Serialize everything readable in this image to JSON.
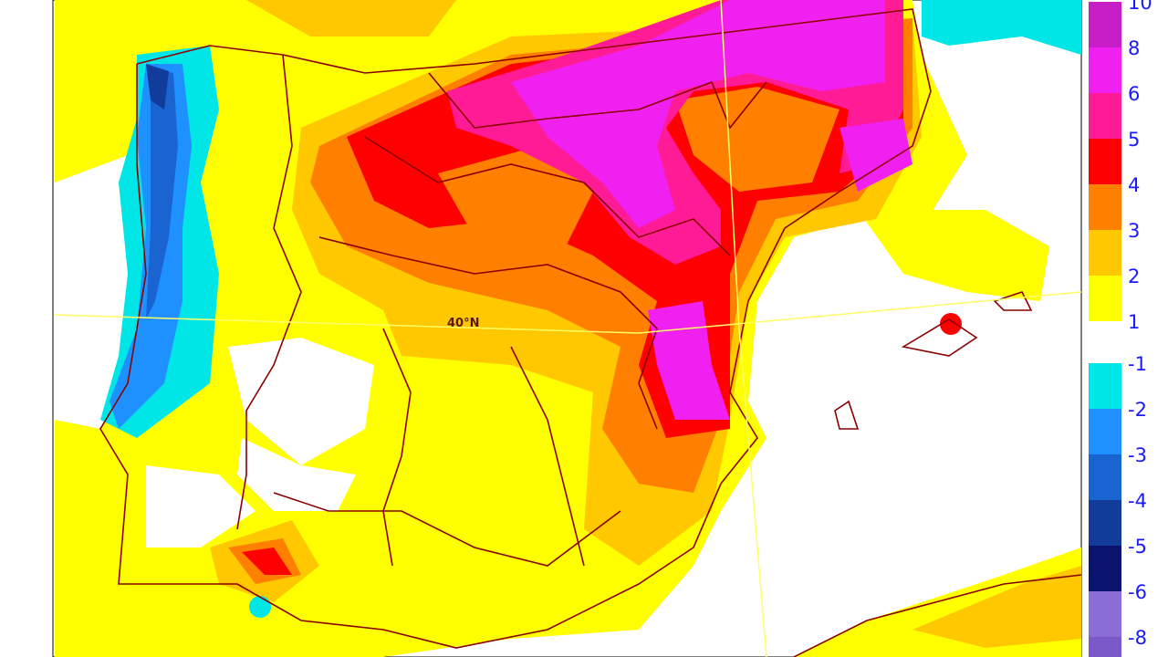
{
  "map_label": "40°N",
  "colorbar": {
    "positive": {
      "labels": [
        10,
        8,
        6,
        5,
        4,
        3,
        2,
        1
      ],
      "colors": [
        "#c81ec8",
        "#f020f0",
        "#ff1a96",
        "#ff0000",
        "#ff8000",
        "#ffc800",
        "#ffff00"
      ]
    },
    "negative": {
      "labels": [
        -1,
        -2,
        -3,
        -4,
        -5,
        -6,
        -8
      ],
      "colors": [
        "#00e6e6",
        "#1e90ff",
        "#1a64d2",
        "#123c9a",
        "#0a146e",
        "#8a6ed6",
        "#7a5ac8"
      ]
    }
  }
}
